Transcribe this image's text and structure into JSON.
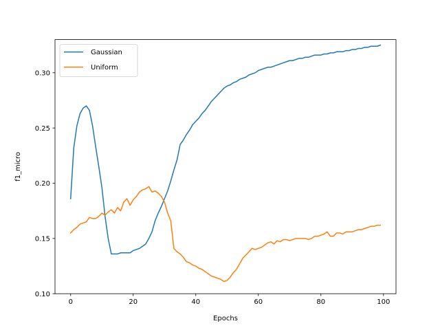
{
  "chart_data": {
    "type": "line",
    "title": "",
    "xlabel": "Epochs",
    "ylabel": "f1_micro",
    "xlim": [
      -5,
      104
    ],
    "ylim": [
      0.1,
      0.33
    ],
    "x_ticks": [
      0,
      20,
      40,
      60,
      80,
      100
    ],
    "y_ticks": [
      0.1,
      0.15,
      0.2,
      0.25,
      0.3
    ],
    "x_tick_labels": [
      "0",
      "20",
      "40",
      "60",
      "80",
      "100"
    ],
    "y_tick_labels": [
      "0.10",
      "0.15",
      "0.20",
      "0.25",
      "0.30"
    ],
    "grid": false,
    "legend_position": "upper-left",
    "x": [
      0,
      1,
      2,
      3,
      4,
      5,
      6,
      7,
      8,
      9,
      10,
      11,
      12,
      13,
      14,
      15,
      16,
      17,
      18,
      19,
      20,
      21,
      22,
      23,
      24,
      25,
      26,
      27,
      28,
      29,
      30,
      31,
      32,
      33,
      34,
      35,
      36,
      37,
      38,
      39,
      40,
      41,
      42,
      43,
      44,
      45,
      46,
      47,
      48,
      49,
      50,
      51,
      52,
      53,
      54,
      55,
      56,
      57,
      58,
      59,
      60,
      61,
      62,
      63,
      64,
      65,
      66,
      67,
      68,
      69,
      70,
      71,
      72,
      73,
      74,
      75,
      76,
      77,
      78,
      79,
      80,
      81,
      82,
      83,
      84,
      85,
      86,
      87,
      88,
      89,
      90,
      91,
      92,
      93,
      94,
      95,
      96,
      97,
      98,
      99
    ],
    "series": [
      {
        "name": "Gaussian",
        "color": "#1f77b4",
        "values": [
          0.186,
          0.232,
          0.252,
          0.263,
          0.268,
          0.27,
          0.266,
          0.252,
          0.233,
          0.215,
          0.196,
          0.17,
          0.15,
          0.136,
          0.136,
          0.136,
          0.137,
          0.137,
          0.137,
          0.137,
          0.139,
          0.14,
          0.141,
          0.143,
          0.145,
          0.15,
          0.156,
          0.166,
          0.173,
          0.179,
          0.186,
          0.193,
          0.202,
          0.212,
          0.221,
          0.235,
          0.239,
          0.244,
          0.248,
          0.253,
          0.256,
          0.259,
          0.263,
          0.266,
          0.27,
          0.274,
          0.277,
          0.28,
          0.283,
          0.286,
          0.288,
          0.289,
          0.291,
          0.292,
          0.294,
          0.295,
          0.296,
          0.298,
          0.299,
          0.3,
          0.302,
          0.303,
          0.304,
          0.305,
          0.305,
          0.306,
          0.307,
          0.308,
          0.309,
          0.31,
          0.311,
          0.311,
          0.312,
          0.313,
          0.313,
          0.314,
          0.314,
          0.315,
          0.316,
          0.316,
          0.316,
          0.317,
          0.317,
          0.318,
          0.318,
          0.319,
          0.319,
          0.319,
          0.32,
          0.32,
          0.321,
          0.321,
          0.322,
          0.322,
          0.323,
          0.323,
          0.324,
          0.324,
          0.324,
          0.325
        ]
      },
      {
        "name": "Uniform",
        "color": "#ff7f0e",
        "values": [
          0.155,
          0.158,
          0.16,
          0.163,
          0.164,
          0.165,
          0.169,
          0.168,
          0.168,
          0.17,
          0.173,
          0.171,
          0.174,
          0.176,
          0.173,
          0.178,
          0.175,
          0.183,
          0.186,
          0.18,
          0.185,
          0.188,
          0.192,
          0.194,
          0.195,
          0.197,
          0.192,
          0.193,
          0.191,
          0.188,
          0.183,
          0.173,
          0.166,
          0.141,
          0.138,
          0.136,
          0.133,
          0.129,
          0.128,
          0.126,
          0.125,
          0.123,
          0.122,
          0.12,
          0.118,
          0.116,
          0.115,
          0.114,
          0.113,
          0.111,
          0.112,
          0.115,
          0.119,
          0.122,
          0.127,
          0.132,
          0.135,
          0.138,
          0.141,
          0.14,
          0.141,
          0.142,
          0.144,
          0.146,
          0.147,
          0.145,
          0.148,
          0.147,
          0.149,
          0.149,
          0.148,
          0.149,
          0.15,
          0.15,
          0.15,
          0.15,
          0.149,
          0.15,
          0.152,
          0.152,
          0.153,
          0.154,
          0.156,
          0.152,
          0.152,
          0.155,
          0.155,
          0.154,
          0.156,
          0.156,
          0.156,
          0.157,
          0.158,
          0.158,
          0.159,
          0.16,
          0.161,
          0.161,
          0.162,
          0.162
        ]
      }
    ]
  }
}
